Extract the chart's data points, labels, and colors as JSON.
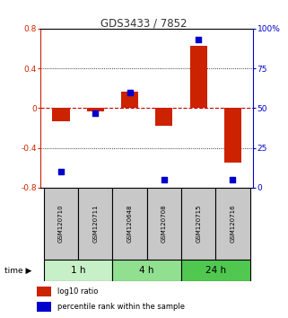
{
  "title": "GDS3433 / 7852",
  "samples": [
    "GSM120710",
    "GSM120711",
    "GSM120648",
    "GSM120708",
    "GSM120715",
    "GSM120716"
  ],
  "groups": [
    {
      "label": "1 h",
      "indices": [
        0,
        1
      ],
      "color": "#c8f0c8"
    },
    {
      "label": "4 h",
      "indices": [
        2,
        3
      ],
      "color": "#90e090"
    },
    {
      "label": "24 h",
      "indices": [
        4,
        5
      ],
      "color": "#50c850"
    }
  ],
  "log10_ratio": [
    -0.13,
    -0.03,
    0.17,
    -0.18,
    0.63,
    -0.55
  ],
  "percentile_rank": [
    10,
    47,
    60,
    5,
    93,
    5
  ],
  "ylim_left": [
    -0.8,
    0.8
  ],
  "ylim_right": [
    0,
    100
  ],
  "yticks_left": [
    -0.8,
    -0.4,
    0.0,
    0.4,
    0.8
  ],
  "yticks_right": [
    0,
    25,
    50,
    75,
    100
  ],
  "bar_color": "#cc2200",
  "dot_color": "#0000cc",
  "zero_line_color": "#cc0000",
  "grid_color": "#000000",
  "bg_color": "#ffffff",
  "title_color": "#333333",
  "left_tick_color": "#cc2200",
  "right_tick_color": "#0000cc",
  "sample_box_color": "#c8c8c8",
  "bar_width": 0.5,
  "dot_size": 18
}
